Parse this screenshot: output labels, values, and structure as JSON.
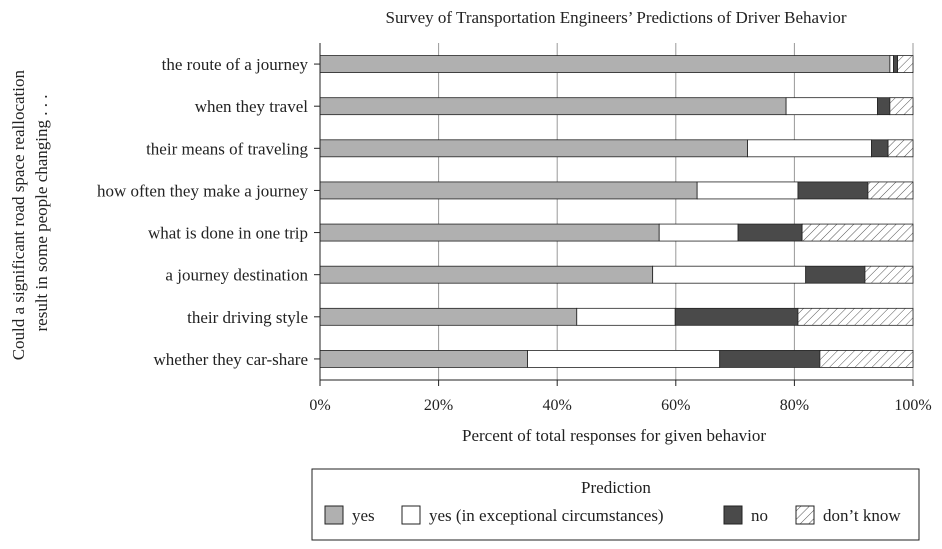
{
  "chart_data": {
    "type": "bar",
    "orientation": "horizontal",
    "stacked": true,
    "title": "Survey of Transportation Engineers’ Predictions of Driver Behavior",
    "xlabel": "Percent of total responses for given behavior",
    "ylabel": [
      "Could a significant road space reallocation",
      "result in some people changing . . ."
    ],
    "xlim": [
      0,
      100
    ],
    "x_ticks": [
      "0%",
      "20%",
      "40%",
      "60%",
      "80%",
      "100%"
    ],
    "grid": "vertical",
    "categories": [
      "the route of a journey",
      "when they travel",
      "their means of traveling",
      "how often they make a journey",
      "what is done in one trip",
      "a journey destination",
      "their driving style",
      "whether they car-share"
    ],
    "series": [
      {
        "name": "yes",
        "color": "#b0b0b0",
        "pattern": "solid",
        "values": [
          96.1,
          78.6,
          72.1,
          63.6,
          57.2,
          56.1,
          43.3,
          35.0
        ]
      },
      {
        "name": "yes (in exceptional circumstances)",
        "color": "#ffffff",
        "pattern": "solid",
        "values": [
          0.6,
          15.4,
          20.9,
          17.0,
          13.3,
          25.8,
          16.6,
          32.4
        ]
      },
      {
        "name": "no",
        "color": "#4a4a4a",
        "pattern": "solid",
        "values": [
          0.7,
          2.1,
          2.8,
          11.8,
          10.8,
          10.0,
          20.7,
          16.9
        ]
      },
      {
        "name": "don’t know",
        "color": "#ffffff",
        "pattern": "hatch",
        "values": [
          2.6,
          3.9,
          4.2,
          7.6,
          18.7,
          8.1,
          19.4,
          15.7
        ]
      }
    ],
    "legend": {
      "title": "Prediction",
      "position": "bottom"
    }
  }
}
